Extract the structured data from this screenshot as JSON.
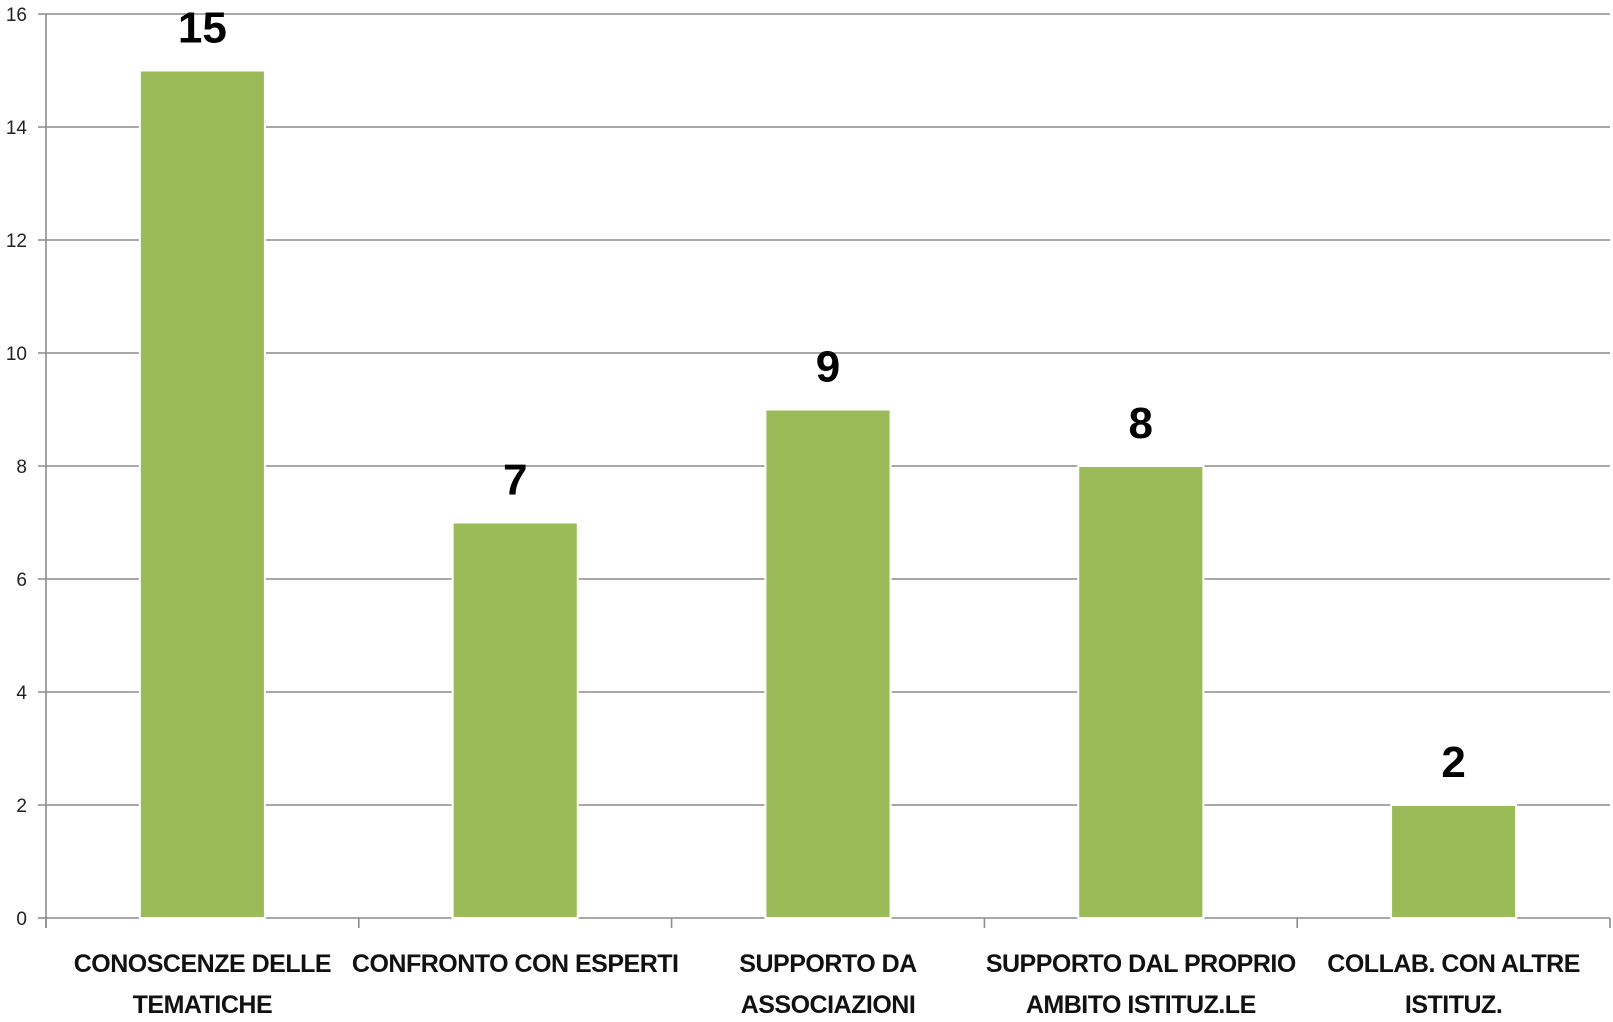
{
  "chart_data": {
    "type": "bar",
    "categories": [
      [
        "CONOSCENZE DELLE",
        "TEMATICHE"
      ],
      [
        "CONFRONTO CON ESPERTI"
      ],
      [
        "SUPPORTO DA",
        "ASSOCIAZIONI"
      ],
      [
        "SUPPORTO DAL PROPRIO",
        "AMBITO ISTITUZ.LE"
      ],
      [
        "COLLAB. CON ALTRE",
        "ISTITUZ."
      ]
    ],
    "values": [
      15,
      7,
      9,
      8,
      2
    ],
    "data_labels": [
      "15",
      "7",
      "9",
      "8",
      "2"
    ],
    "y_ticks": [
      "0",
      "2",
      "4",
      "6",
      "8",
      "10",
      "12",
      "14",
      "16"
    ],
    "ylim": [
      0,
      16
    ],
    "grid": true,
    "legend": "none",
    "bar_color": "#9bbb59",
    "title": "",
    "xlabel": "",
    "ylabel": ""
  }
}
